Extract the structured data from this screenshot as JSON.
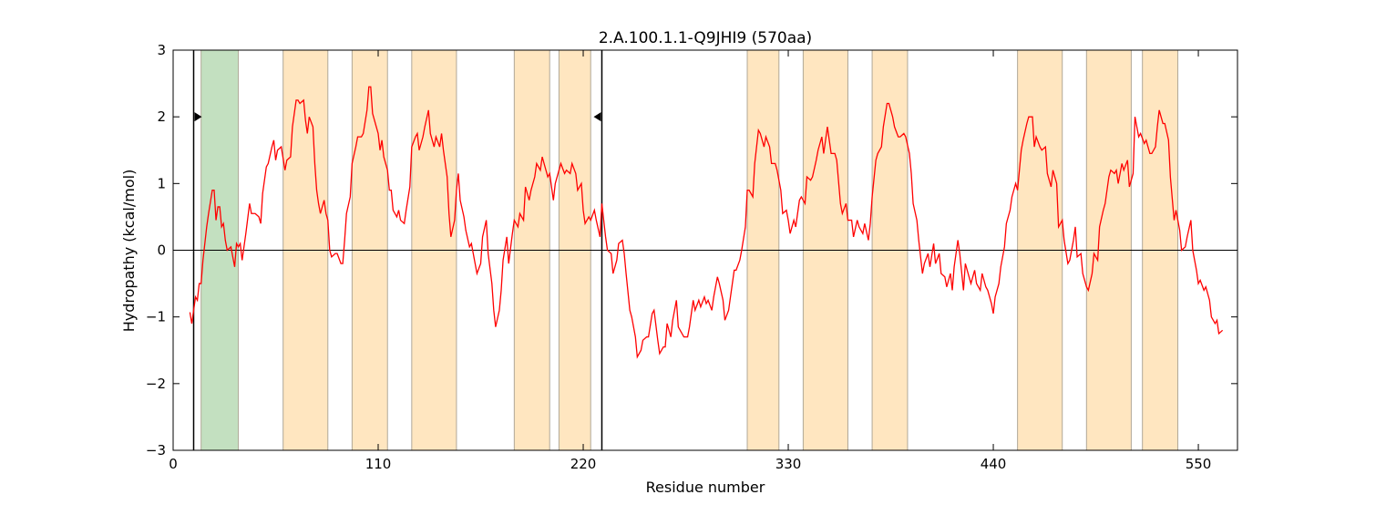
{
  "chart_data": {
    "type": "line",
    "title": "2.A.100.1.1-Q9JHI9 (570aa)",
    "xlabel": "Residue number",
    "ylabel": "Hydropathy (kcal/mol)",
    "xlim": [
      0,
      571
    ],
    "ylim": [
      -3,
      3
    ],
    "xticks": [
      0,
      110,
      220,
      330,
      440,
      550
    ],
    "yticks": [
      {
        "value": -3,
        "label": "−3"
      },
      {
        "value": -2,
        "label": "−2"
      },
      {
        "value": -1,
        "label": "−1"
      },
      0,
      1,
      2,
      3
    ],
    "color": "#ff0000",
    "hline": 0,
    "regions": [
      {
        "start": 15,
        "end": 35,
        "color": "#c3e0c0"
      },
      {
        "start": 59,
        "end": 83,
        "color": "#ffe6c0"
      },
      {
        "start": 96,
        "end": 115,
        "color": "#ffe6c0"
      },
      {
        "start": 128,
        "end": 152,
        "color": "#ffe6c0"
      },
      {
        "start": 183,
        "end": 202,
        "color": "#ffe6c0"
      },
      {
        "start": 207,
        "end": 224,
        "color": "#ffe6c0"
      },
      {
        "start": 308,
        "end": 325,
        "color": "#ffe6c0"
      },
      {
        "start": 338,
        "end": 362,
        "color": "#ffe6c0"
      },
      {
        "start": 375,
        "end": 394,
        "color": "#ffe6c0"
      },
      {
        "start": 453,
        "end": 477,
        "color": "#ffe6c0"
      },
      {
        "start": 490,
        "end": 514,
        "color": "#ffe6c0"
      },
      {
        "start": 520,
        "end": 539,
        "color": "#ffe6c0"
      }
    ],
    "vlines": [
      {
        "x": 11,
        "marker_y": 2,
        "marker": "right"
      },
      {
        "x": 230,
        "marker_y": 2,
        "marker": "left"
      }
    ],
    "x": [
      9,
      10,
      12,
      13,
      14,
      15,
      16,
      18,
      19,
      21,
      22,
      23,
      24,
      25,
      26,
      27,
      28,
      29,
      31,
      32,
      33,
      34,
      35,
      36,
      37,
      39,
      41,
      42,
      44,
      46,
      47,
      48,
      50,
      51,
      53,
      54,
      55,
      56,
      58,
      60,
      61,
      63,
      64,
      66,
      67,
      68,
      70,
      71,
      72,
      73,
      75,
      76,
      77,
      78,
      79,
      81,
      82,
      83,
      84,
      85,
      87,
      88,
      90,
      91,
      92,
      93,
      95,
      96,
      98,
      99,
      101,
      102,
      104,
      105,
      106,
      107,
      109,
      110,
      111,
      112,
      113,
      115,
      116,
      117,
      118,
      120,
      121,
      122,
      124,
      125,
      127,
      128,
      130,
      131,
      132,
      134,
      135,
      137,
      138,
      140,
      141,
      143,
      144,
      145,
      147,
      148,
      149,
      151,
      152,
      153,
      154,
      156,
      157,
      159,
      160,
      162,
      163,
      165,
      166,
      168,
      169,
      171,
      172,
      173,
      175,
      176,
      177,
      179,
      180,
      182,
      183,
      185,
      186,
      188,
      189,
      191,
      192,
      194,
      195,
      197,
      198,
      199,
      201,
      202,
      204,
      205,
      207,
      208,
      210,
      211,
      213,
      214,
      216,
      217,
      219,
      220,
      221,
      223,
      224,
      226,
      227,
      229,
      230,
      232,
      233,
      235,
      236,
      238,
      239,
      241,
      242,
      243,
      245,
      246,
      248,
      249,
      251,
      252,
      254,
      255,
      257,
      258,
      260,
      261,
      263,
      264,
      265,
      267,
      268,
      270,
      271,
      273,
      274,
      276,
      277,
      279,
      280,
      282,
      283,
      285,
      286,
      287,
      289,
      290,
      292,
      293,
      295,
      296,
      298,
      299,
      301,
      302,
      304,
      305,
      307,
      308,
      309,
      311,
      312,
      314,
      315,
      317,
      318,
      320,
      321,
      323,
      324,
      326,
      327,
      329,
      330,
      331,
      333,
      334,
      336,
      337,
      339,
      340,
      342,
      343,
      345,
      346,
      348,
      349,
      351,
      352,
      353,
      355,
      356,
      358,
      359,
      361,
      362,
      364,
      365,
      367,
      368,
      370,
      371,
      373,
      374,
      375,
      377,
      378,
      380,
      381,
      383,
      384,
      386,
      387,
      389,
      390,
      392,
      393,
      395,
      396,
      397,
      399,
      400,
      402,
      403,
      405,
      406,
      408,
      409,
      411,
      412,
      414,
      415,
      417,
      418,
      419,
      421,
      422,
      424,
      425,
      427,
      428,
      430,
      431,
      433,
      434,
      436,
      437,
      439,
      440,
      441,
      443,
      444,
      446,
      447,
      449,
      450,
      452,
      453,
      455,
      456,
      458,
      459,
      461,
      462,
      463,
      465,
      466,
      468,
      469,
      471,
      472,
      474,
      475,
      477,
      478,
      480,
      481,
      483,
      484,
      485,
      487,
      488,
      490,
      491,
      493,
      494,
      496,
      497,
      499,
      500,
      502,
      503,
      505,
      506,
      507,
      509,
      510,
      512,
      513,
      515,
      516,
      518,
      519,
      521,
      522,
      524,
      525,
      527,
      528,
      529,
      531,
      532,
      534,
      535,
      537,
      538,
      540,
      541,
      543,
      544,
      546,
      547,
      549,
      550,
      551,
      553,
      554,
      556,
      557,
      559,
      560,
      561,
      563
    ],
    "values": [
      -0.93,
      -1.1,
      -0.7,
      -0.75,
      -0.5,
      -0.5,
      -0.15,
      0.35,
      0.55,
      0.9,
      0.9,
      0.45,
      0.65,
      0.65,
      0.35,
      0.4,
      0.15,
      0,
      0.05,
      -0.1,
      -0.25,
      0.1,
      0.05,
      0.1,
      -0.15,
      0.25,
      0.7,
      0.55,
      0.55,
      0.5,
      0.4,
      0.85,
      1.25,
      1.3,
      1.55,
      1.65,
      1.35,
      1.5,
      1.55,
      1.2,
      1.35,
      1.4,
      1.85,
      2.25,
      2.25,
      2.2,
      2.25,
      1.95,
      1.75,
      2.0,
      1.85,
      1.3,
      0.9,
      0.7,
      0.55,
      0.75,
      0.55,
      0.45,
      0,
      -0.1,
      -0.05,
      -0.05,
      -0.2,
      -0.2,
      0.15,
      0.55,
      0.8,
      1.3,
      1.55,
      1.7,
      1.7,
      1.75,
      2.1,
      2.45,
      2.45,
      2.05,
      1.85,
      1.75,
      1.5,
      1.65,
      1.4,
      1.2,
      0.9,
      0.9,
      0.6,
      0.5,
      0.6,
      0.45,
      0.4,
      0.6,
      0.95,
      1.55,
      1.7,
      1.75,
      1.5,
      1.7,
      1.85,
      2.1,
      1.75,
      1.55,
      1.7,
      1.55,
      1.75,
      1.5,
      1.1,
      0.55,
      0.2,
      0.45,
      0.9,
      1.15,
      0.75,
      0.5,
      0.3,
      0.05,
      0.1,
      -0.2,
      -0.35,
      -0.2,
      0.2,
      0.45,
      -0.05,
      -0.5,
      -0.9,
      -1.15,
      -0.9,
      -0.6,
      -0.15,
      0.2,
      -0.2,
      0.25,
      0.45,
      0.35,
      0.55,
      0.45,
      0.95,
      0.75,
      0.9,
      1.1,
      1.3,
      1.2,
      1.4,
      1.3,
      1.1,
      1.15,
      0.75,
      1.0,
      1.2,
      1.3,
      1.15,
      1.2,
      1.15,
      1.3,
      1.15,
      0.9,
      1.0,
      0.6,
      0.4,
      0.5,
      0.45,
      0.6,
      0.45,
      0.2,
      0.7,
      0.2,
      0,
      -0.05,
      -0.35,
      -0.15,
      0.1,
      0.15,
      -0.05,
      -0.35,
      -0.9,
      -1.0,
      -1.3,
      -1.6,
      -1.5,
      -1.35,
      -1.3,
      -1.3,
      -0.95,
      -0.9,
      -1.35,
      -1.55,
      -1.45,
      -1.45,
      -1.1,
      -1.3,
      -1.05,
      -0.75,
      -1.15,
      -1.25,
      -1.3,
      -1.3,
      -1.15,
      -0.75,
      -0.9,
      -0.75,
      -0.85,
      -0.7,
      -0.8,
      -0.75,
      -0.9,
      -0.7,
      -0.4,
      -0.5,
      -0.75,
      -1.05,
      -0.9,
      -0.7,
      -0.3,
      -0.3,
      -0.15,
      0,
      0.35,
      0.9,
      0.9,
      0.8,
      1.3,
      1.8,
      1.75,
      1.55,
      1.7,
      1.55,
      1.3,
      1.3,
      1.2,
      0.9,
      0.55,
      0.6,
      0.45,
      0.25,
      0.45,
      0.35,
      0.75,
      0.8,
      0.7,
      1.1,
      1.05,
      1.1,
      1.35,
      1.5,
      1.7,
      1.45,
      1.85,
      1.65,
      1.45,
      1.45,
      1.35,
      0.7,
      0.55,
      0.7,
      0.45,
      0.45,
      0.2,
      0.45,
      0.35,
      0.25,
      0.4,
      0.15,
      0.4,
      0.8,
      1.35,
      1.45,
      1.55,
      1.85,
      2.2,
      2.2,
      2.0,
      1.85,
      1.7,
      1.7,
      1.75,
      1.7,
      1.45,
      1.15,
      0.7,
      0.45,
      0.15,
      -0.35,
      -0.2,
      -0.05,
      -0.25,
      0.1,
      -0.2,
      -0.05,
      -0.35,
      -0.4,
      -0.55,
      -0.35,
      -0.6,
      -0.25,
      0.15,
      -0.05,
      -0.6,
      -0.2,
      -0.4,
      -0.5,
      -0.3,
      -0.5,
      -0.6,
      -0.35,
      -0.55,
      -0.6,
      -0.8,
      -0.95,
      -0.7,
      -0.5,
      -0.25,
      0.05,
      0.4,
      0.6,
      0.8,
      1.0,
      0.9,
      1.5,
      1.65,
      1.9,
      2.0,
      2.0,
      1.55,
      1.7,
      1.55,
      1.5,
      1.55,
      1.15,
      0.95,
      1.2,
      1.0,
      0.35,
      0.45,
      0.15,
      -0.2,
      -0.15,
      0.15,
      0.35,
      -0.1,
      -0.05,
      -0.35,
      -0.55,
      -0.6,
      -0.35,
      -0.05,
      -0.15,
      0.35,
      0.6,
      0.7,
      1.1,
      1.2,
      1.15,
      1.2,
      1.0,
      1.3,
      1.2,
      1.35,
      0.95,
      1.15,
      2.0,
      1.7,
      1.75,
      1.6,
      1.65,
      1.45,
      1.45,
      1.55,
      1.85,
      2.1,
      1.9,
      1.9,
      1.65,
      1.1,
      0.45,
      0.6,
      0.3,
      0,
      0.05,
      0.2,
      0.45,
      0,
      -0.3,
      -0.5,
      -0.45,
      -0.6,
      -0.55,
      -0.75,
      -1.0,
      -1.1,
      -1.05,
      -1.25,
      -1.2
    ]
  }
}
